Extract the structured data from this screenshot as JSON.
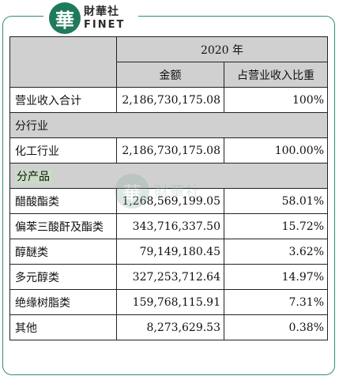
{
  "logo": {
    "char": "華",
    "cn": "財華社",
    "en": "FINET"
  },
  "watermark": {
    "char": "華",
    "text": "財華社"
  },
  "header": {
    "year": "2020 年",
    "col_amount": "金额",
    "col_ratio": "占营业收入比重"
  },
  "total": {
    "label": "营业收入合计",
    "amount": "2,186,730,175.08",
    "ratio": "100%"
  },
  "by_industry": {
    "label": "分行业",
    "rows": [
      {
        "label": "化工行业",
        "amount": "2,186,730,175.08",
        "ratio": "100.00%"
      }
    ]
  },
  "by_product": {
    "label": "分产品",
    "rows": [
      {
        "label": "醋酸酯类",
        "amount": "1,268,569,199.05",
        "ratio": "58.01%"
      },
      {
        "label": "偏苯三酸酐及酯类",
        "amount": "343,716,337.50",
        "ratio": "15.72%"
      },
      {
        "label": "醇醚类",
        "amount": "79,149,180.45",
        "ratio": "3.62%"
      },
      {
        "label": "多元醇类",
        "amount": "327,253,712.64",
        "ratio": "14.97%"
      },
      {
        "label": "绝缘树脂类",
        "amount": "159,768,115.91",
        "ratio": "7.31%"
      },
      {
        "label": "其他",
        "amount": "8,273,629.53",
        "ratio": "0.38%"
      }
    ]
  },
  "colors": {
    "brand_green": "#1f7a5a",
    "frame": "#2f8f6f",
    "header_gray": "#d0d0d0",
    "highlight": "#c8dcc4"
  }
}
